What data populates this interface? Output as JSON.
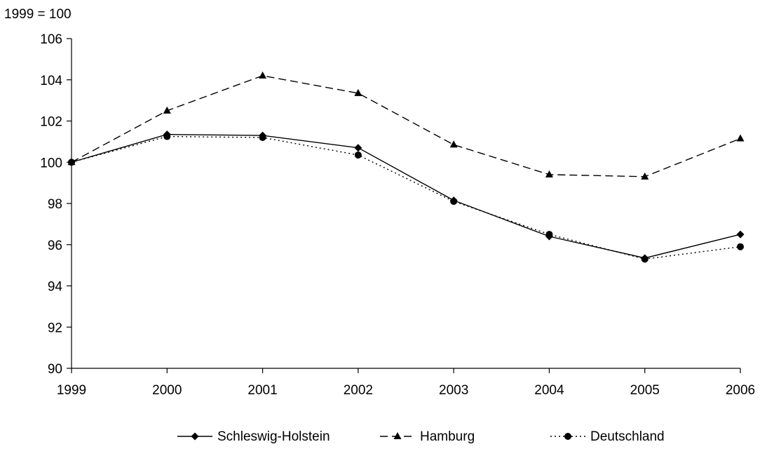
{
  "chart_data": {
    "type": "line",
    "y_unit_label": "1999 = 100",
    "x": [
      "1999",
      "2000",
      "2001",
      "2002",
      "2003",
      "2004",
      "2005",
      "2006"
    ],
    "ylim": [
      90,
      106
    ],
    "y_ticks": [
      90,
      92,
      94,
      96,
      98,
      100,
      102,
      104,
      106
    ],
    "grid": false,
    "legend_position": "bottom",
    "series": [
      {
        "name": "Schleswig-Holstein",
        "style": "solid",
        "marker": "diamond",
        "color": "#000000",
        "values": [
          100.0,
          101.35,
          101.3,
          100.7,
          98.15,
          96.4,
          95.35,
          96.5
        ]
      },
      {
        "name": "Hamburg",
        "style": "dashed",
        "marker": "triangle",
        "color": "#000000",
        "values": [
          100.0,
          102.5,
          104.2,
          103.35,
          100.85,
          99.4,
          99.3,
          101.15
        ]
      },
      {
        "name": "Deutschland",
        "style": "dotted",
        "marker": "circle",
        "color": "#000000",
        "values": [
          100.0,
          101.25,
          101.2,
          100.35,
          98.1,
          96.5,
          95.3,
          95.9
        ]
      }
    ]
  }
}
